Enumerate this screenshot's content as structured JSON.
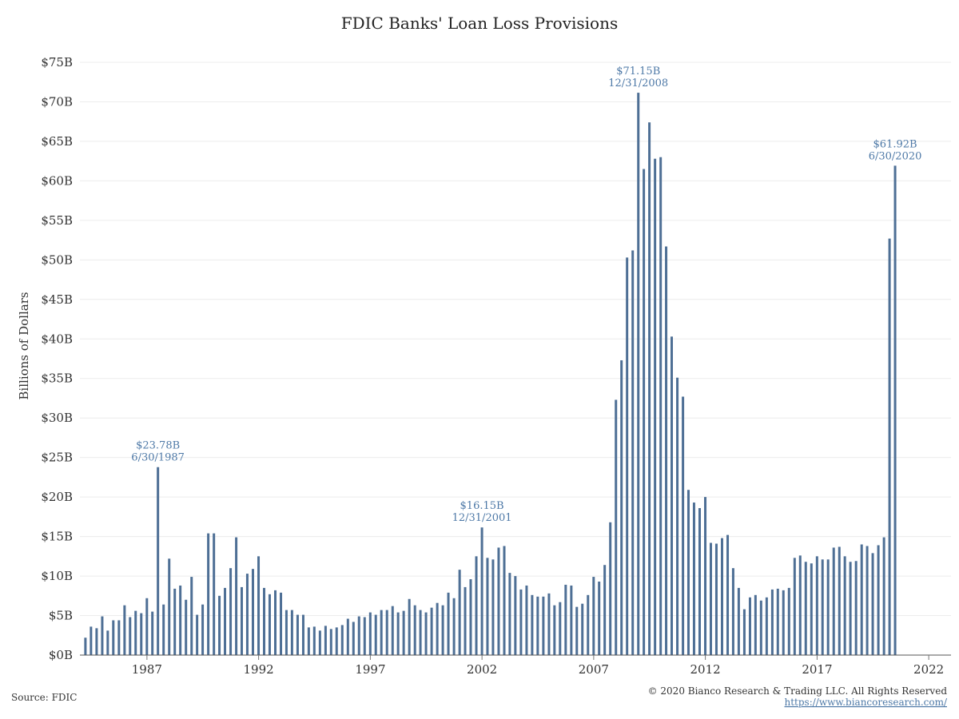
{
  "chart_data": {
    "type": "bar",
    "title": "FDIC Banks' Loan Loss Provisions",
    "ylabel": "Billions of Dollars",
    "xlabel": "",
    "ylim": [
      0,
      75
    ],
    "xlim": [
      "1984-01-01",
      "2022-12-31"
    ],
    "yticks": [
      0,
      5,
      10,
      15,
      20,
      25,
      30,
      35,
      40,
      45,
      50,
      55,
      60,
      65,
      70,
      75
    ],
    "ytick_labels": [
      "$0B",
      "$5B",
      "$10B",
      "$15B",
      "$20B",
      "$25B",
      "$30B",
      "$35B",
      "$40B",
      "$45B",
      "$50B",
      "$55B",
      "$60B",
      "$65B",
      "$70B",
      "$75B"
    ],
    "xticks": [
      "1987",
      "1992",
      "1997",
      "2002",
      "2007",
      "2012",
      "2017",
      "2022"
    ],
    "grid": true,
    "color": "#4e6f95",
    "annotation_color": "#4e79a7",
    "series": [
      {
        "x": [
          "1984-03-31",
          "1984-06-30",
          "1984-09-30",
          "1984-12-31",
          "1985-03-31",
          "1985-06-30",
          "1985-09-30",
          "1985-12-31",
          "1986-03-31",
          "1986-06-30",
          "1986-09-30",
          "1986-12-31",
          "1987-03-31",
          "1987-06-30",
          "1987-09-30",
          "1987-12-31",
          "1988-03-31",
          "1988-06-30",
          "1988-09-30",
          "1988-12-31",
          "1989-03-31",
          "1989-06-30",
          "1989-09-30",
          "1989-12-31",
          "1990-03-31",
          "1990-06-30",
          "1990-09-30",
          "1990-12-31",
          "1991-03-31",
          "1991-06-30",
          "1991-09-30",
          "1991-12-31",
          "1992-03-31",
          "1992-06-30",
          "1992-09-30",
          "1992-12-31",
          "1993-03-31",
          "1993-06-30",
          "1993-09-30",
          "1993-12-31",
          "1994-03-31",
          "1994-06-30",
          "1994-09-30",
          "1994-12-31",
          "1995-03-31",
          "1995-06-30",
          "1995-09-30",
          "1995-12-31",
          "1996-03-31",
          "1996-06-30",
          "1996-09-30",
          "1996-12-31",
          "1997-03-31",
          "1997-06-30",
          "1997-09-30",
          "1997-12-31",
          "1998-03-31",
          "1998-06-30",
          "1998-09-30",
          "1998-12-31",
          "1999-03-31",
          "1999-06-30",
          "1999-09-30",
          "1999-12-31",
          "2000-03-31",
          "2000-06-30",
          "2000-09-30",
          "2000-12-31",
          "2001-03-31",
          "2001-06-30",
          "2001-09-30",
          "2001-12-31",
          "2002-03-31",
          "2002-06-30",
          "2002-09-30",
          "2002-12-31",
          "2003-03-31",
          "2003-06-30",
          "2003-09-30",
          "2003-12-31",
          "2004-03-31",
          "2004-06-30",
          "2004-09-30",
          "2004-12-31",
          "2005-03-31",
          "2005-06-30",
          "2005-09-30",
          "2005-12-31",
          "2006-03-31",
          "2006-06-30",
          "2006-09-30",
          "2006-12-31",
          "2007-03-31",
          "2007-06-30",
          "2007-09-30",
          "2007-12-31",
          "2008-03-31",
          "2008-06-30",
          "2008-09-30",
          "2008-12-31",
          "2009-03-31",
          "2009-06-30",
          "2009-09-30",
          "2009-12-31",
          "2010-03-31",
          "2010-06-30",
          "2010-09-30",
          "2010-12-31",
          "2011-03-31",
          "2011-06-30",
          "2011-09-30",
          "2011-12-31",
          "2012-03-31",
          "2012-06-30",
          "2012-09-30",
          "2012-12-31",
          "2013-03-31",
          "2013-06-30",
          "2013-09-30",
          "2013-12-31",
          "2014-03-31",
          "2014-06-30",
          "2014-09-30",
          "2014-12-31",
          "2015-03-31",
          "2015-06-30",
          "2015-09-30",
          "2015-12-31",
          "2016-03-31",
          "2016-06-30",
          "2016-09-30",
          "2016-12-31",
          "2017-03-31",
          "2017-06-30",
          "2017-09-30",
          "2017-12-31",
          "2018-03-31",
          "2018-06-30",
          "2018-09-30",
          "2018-12-31",
          "2019-03-31",
          "2019-06-30",
          "2019-09-30",
          "2019-12-31",
          "2020-03-31",
          "2020-06-30"
        ],
        "values": [
          2.2,
          3.6,
          3.4,
          4.9,
          3.1,
          4.4,
          4.4,
          6.3,
          4.8,
          5.6,
          5.3,
          7.2,
          5.5,
          23.78,
          6.4,
          12.2,
          8.4,
          8.8,
          7.0,
          9.9,
          5.1,
          6.4,
          15.4,
          15.4,
          7.5,
          8.5,
          11.0,
          14.9,
          8.6,
          10.3,
          10.9,
          12.5,
          8.5,
          7.7,
          8.2,
          7.9,
          5.7,
          5.7,
          5.1,
          5.1,
          3.5,
          3.6,
          3.1,
          3.7,
          3.3,
          3.5,
          3.8,
          4.6,
          4.2,
          4.9,
          4.8,
          5.4,
          5.1,
          5.7,
          5.7,
          6.2,
          5.4,
          5.6,
          7.1,
          6.3,
          5.7,
          5.4,
          6.0,
          6.6,
          6.3,
          7.9,
          7.2,
          10.8,
          8.6,
          9.6,
          12.5,
          16.15,
          12.3,
          12.1,
          13.6,
          13.8,
          10.4,
          10.0,
          8.3,
          8.8,
          7.6,
          7.4,
          7.4,
          7.8,
          6.3,
          6.7,
          8.9,
          8.8,
          6.1,
          6.5,
          7.6,
          9.9,
          9.3,
          11.4,
          16.8,
          32.3,
          37.3,
          50.3,
          51.2,
          71.15,
          61.5,
          67.4,
          62.8,
          63.0,
          51.7,
          40.3,
          35.1,
          32.7,
          20.9,
          19.3,
          18.6,
          20.0,
          14.2,
          14.1,
          14.8,
          15.2,
          11.0,
          8.5,
          5.8,
          7.3,
          7.6,
          6.9,
          7.3,
          8.3,
          8.4,
          8.2,
          8.5,
          12.3,
          12.6,
          11.8,
          11.6,
          12.5,
          12.1,
          12.1,
          13.6,
          13.7,
          12.5,
          11.8,
          11.9,
          14.0,
          13.8,
          12.9,
          13.9,
          14.9,
          52.7,
          61.92
        ]
      }
    ],
    "annotations": [
      {
        "x": "1987-06-30",
        "value_label": "$23.78B",
        "date_label": "6/30/1987"
      },
      {
        "x": "2001-12-31",
        "value_label": "$16.15B",
        "date_label": "12/31/2001"
      },
      {
        "x": "2008-12-31",
        "value_label": "$71.15B",
        "date_label": "12/31/2008"
      },
      {
        "x": "2020-06-30",
        "value_label": "$61.92B",
        "date_label": "6/30/2020"
      }
    ]
  },
  "footer": {
    "source": "Source: FDIC",
    "copyright": "© 2020 Bianco Research & Trading LLC. All Rights Reserved",
    "url": "https://www.biancoresearch.com/"
  }
}
